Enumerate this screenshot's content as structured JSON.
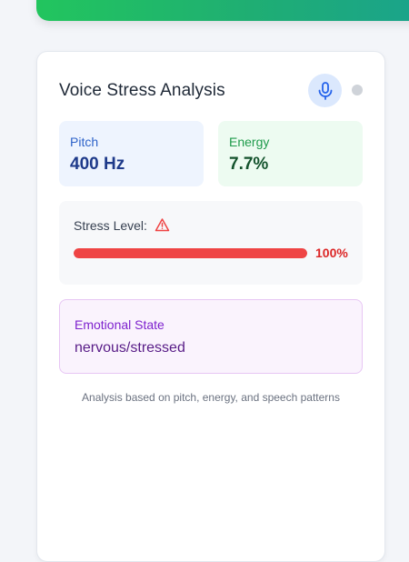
{
  "card": {
    "title": "Voice Stress Analysis",
    "mic_icon": "microphone-icon",
    "status_color": "#cfd3d9"
  },
  "metrics": {
    "pitch": {
      "label": "Pitch",
      "value": "400 Hz"
    },
    "energy": {
      "label": "Energy",
      "value": "7.7%"
    }
  },
  "stress": {
    "label": "Stress Level:",
    "icon": "warning-icon",
    "percent": 100,
    "percent_text": "100%",
    "bar_color": "#ef4444"
  },
  "emotion": {
    "label": "Emotional State",
    "value": "nervous/stressed"
  },
  "footnote": "Analysis based on pitch, energy, and speech patterns",
  "colors": {
    "banner_start": "#22c55e",
    "banner_end": "#1aa38c",
    "mic_bg": "#dbe8fd",
    "mic_fg": "#2563eb"
  }
}
